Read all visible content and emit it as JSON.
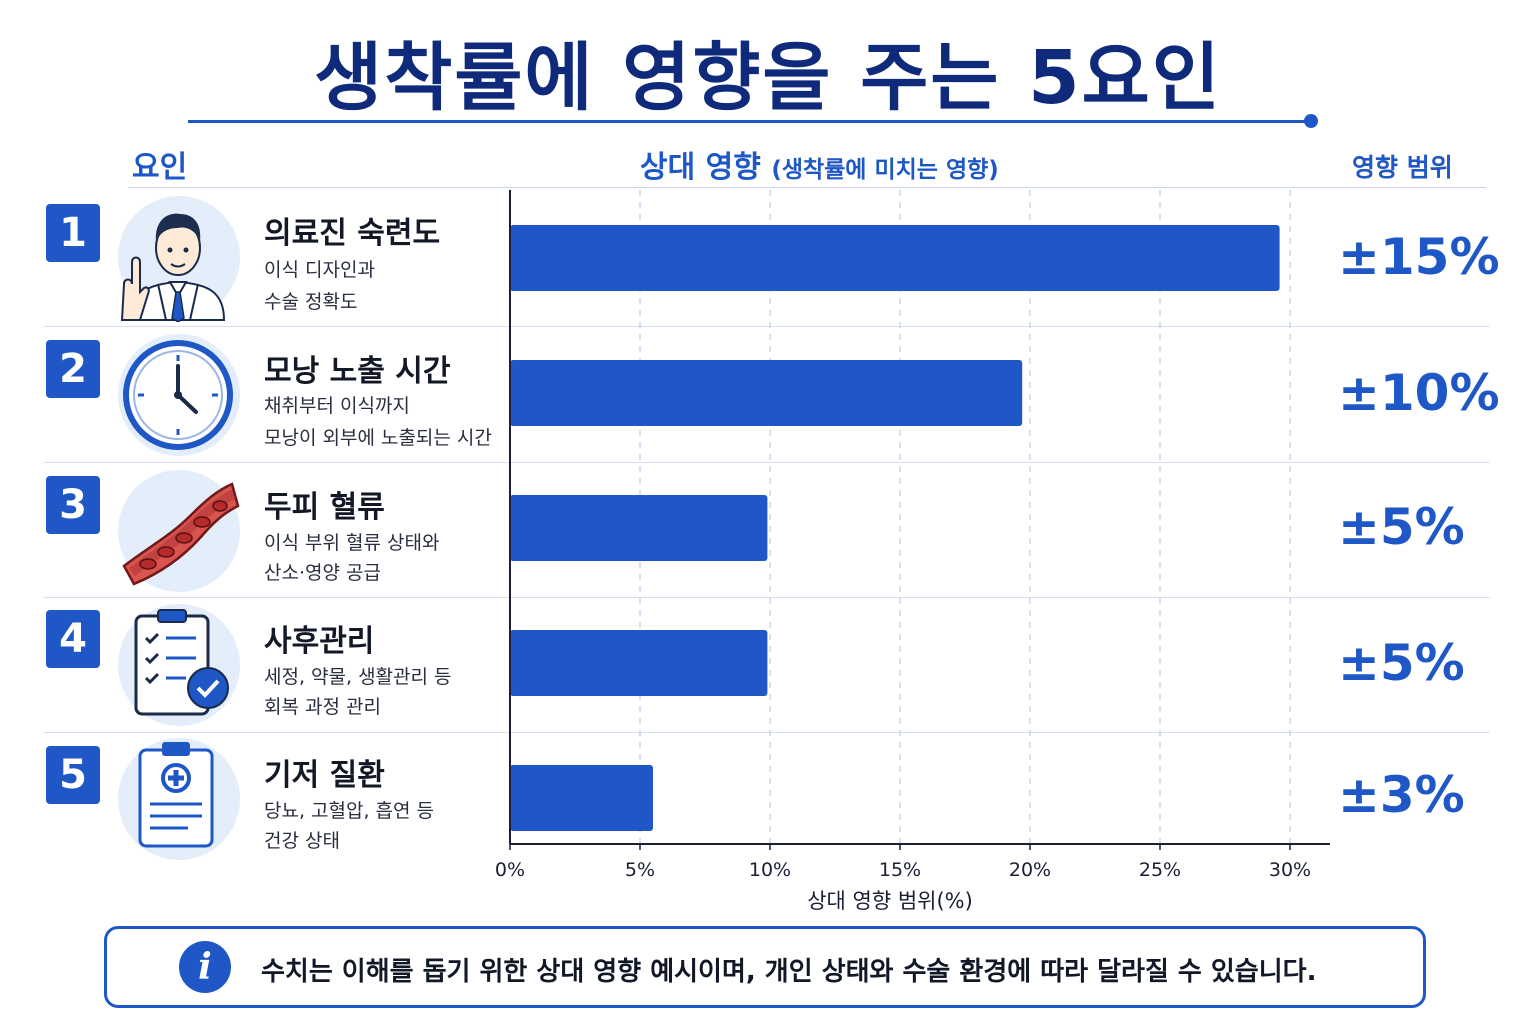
{
  "title": "생착률에 영향을 주는 5요인",
  "headers": {
    "factor": "요인",
    "impact": "상대 영향",
    "impact_sub": "(생착률에 미치는 영향)",
    "range": "영향 범위"
  },
  "factors": [
    {
      "number": "1",
      "title": "의료진 숙련도",
      "desc_line1": "이식 디자인과",
      "desc_line2": "수술 정확도",
      "range": "±15%",
      "icon": "doctor-icon"
    },
    {
      "number": "2",
      "title": "모낭 노출 시간",
      "desc_line1": "채취부터 이식까지",
      "desc_line2": "모낭이 외부에 노출되는 시간",
      "range": "±10%",
      "icon": "clock-icon"
    },
    {
      "number": "3",
      "title": "두피 혈류",
      "desc_line1": "이식 부위 혈류 상태와",
      "desc_line2": "산소·영양 공급",
      "range": "±5%",
      "icon": "blood-vessel-icon"
    },
    {
      "number": "4",
      "title": "사후관리",
      "desc_line1": "세정, 약물, 생활관리 등",
      "desc_line2": "회복 과정 관리",
      "range": "±5%",
      "icon": "checklist-icon"
    },
    {
      "number": "5",
      "title": "기저 질환",
      "desc_line1": "당뇨, 고혈압, 흡연 등",
      "desc_line2": "건강 상태",
      "range": "±3%",
      "icon": "medical-clipboard-icon"
    }
  ],
  "chart_data": {
    "type": "bar",
    "orientation": "horizontal",
    "categories": [
      "의료진 숙련도",
      "모낭 노출 시간",
      "두피 혈류",
      "사후관리",
      "기저 질환"
    ],
    "values": [
      29.6,
      19.7,
      9.9,
      9.9,
      5.5
    ],
    "xlabel": "상대 영향 범위(%)",
    "xlim": [
      0,
      30
    ],
    "x_ticks": [
      "0%",
      "5%",
      "10%",
      "15%",
      "20%",
      "25%",
      "30%"
    ],
    "tick_values": [
      0,
      5,
      10,
      15,
      20,
      25,
      30
    ],
    "grid": "vertical-dashed",
    "bar_color": "#1f58c6",
    "grid_color": "#c9d6ec"
  },
  "note": "수치는 이해를 돕기 위한 상대 영향 예시이며, 개인 상태와 수술 환경에 따라 달라질 수 있습니다.",
  "note_icon": "i",
  "colors": {
    "accent": "#1f58c6",
    "title": "#0f2a7a",
    "icon_bg": "#e4eefb"
  }
}
